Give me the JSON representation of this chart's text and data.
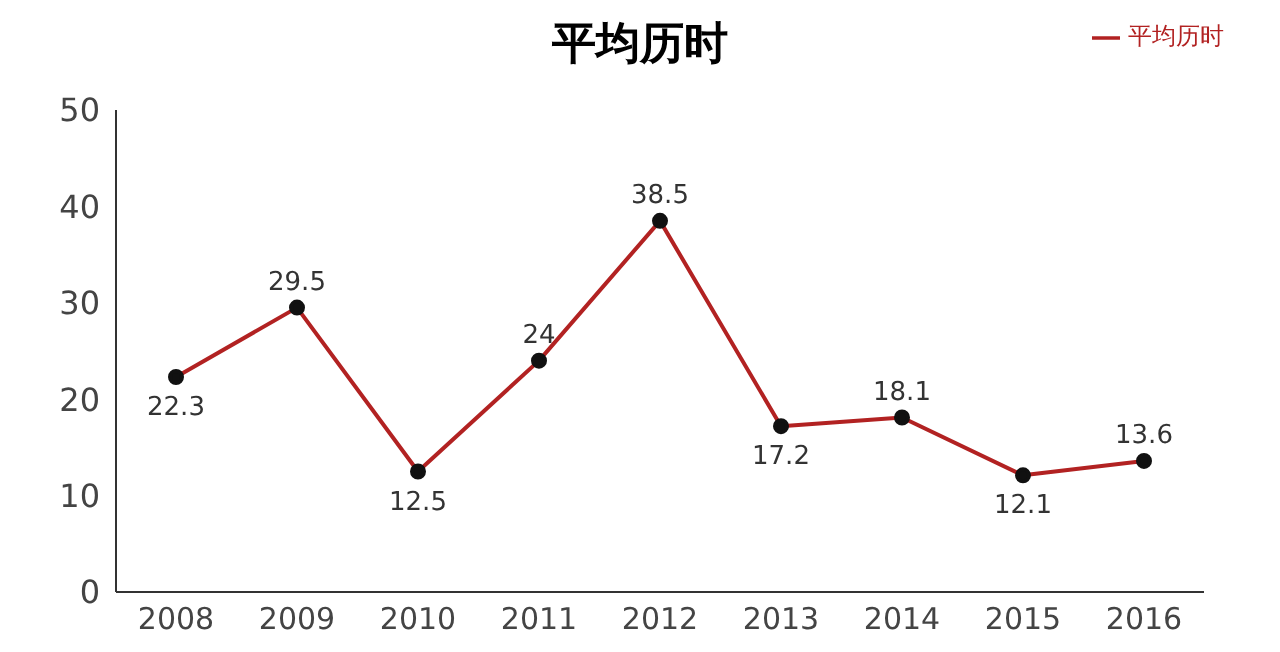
{
  "chart_data": {
    "type": "line",
    "title": "平均历时",
    "categories": [
      "2008",
      "2009",
      "2010",
      "2011",
      "2012",
      "2013",
      "2014",
      "2015",
      "2016"
    ],
    "series": [
      {
        "name": "平均历时",
        "color": "#b22222",
        "values": [
          22.3,
          29.5,
          12.5,
          24,
          38.5,
          17.2,
          18.1,
          12.1,
          13.6
        ]
      }
    ],
    "ylim": [
      0,
      50
    ],
    "yticks": [
      0,
      10,
      20,
      30,
      40,
      50
    ],
    "grid": false,
    "legend": "top right",
    "marker": "circle",
    "line_style": "solid",
    "data_labels": true
  }
}
